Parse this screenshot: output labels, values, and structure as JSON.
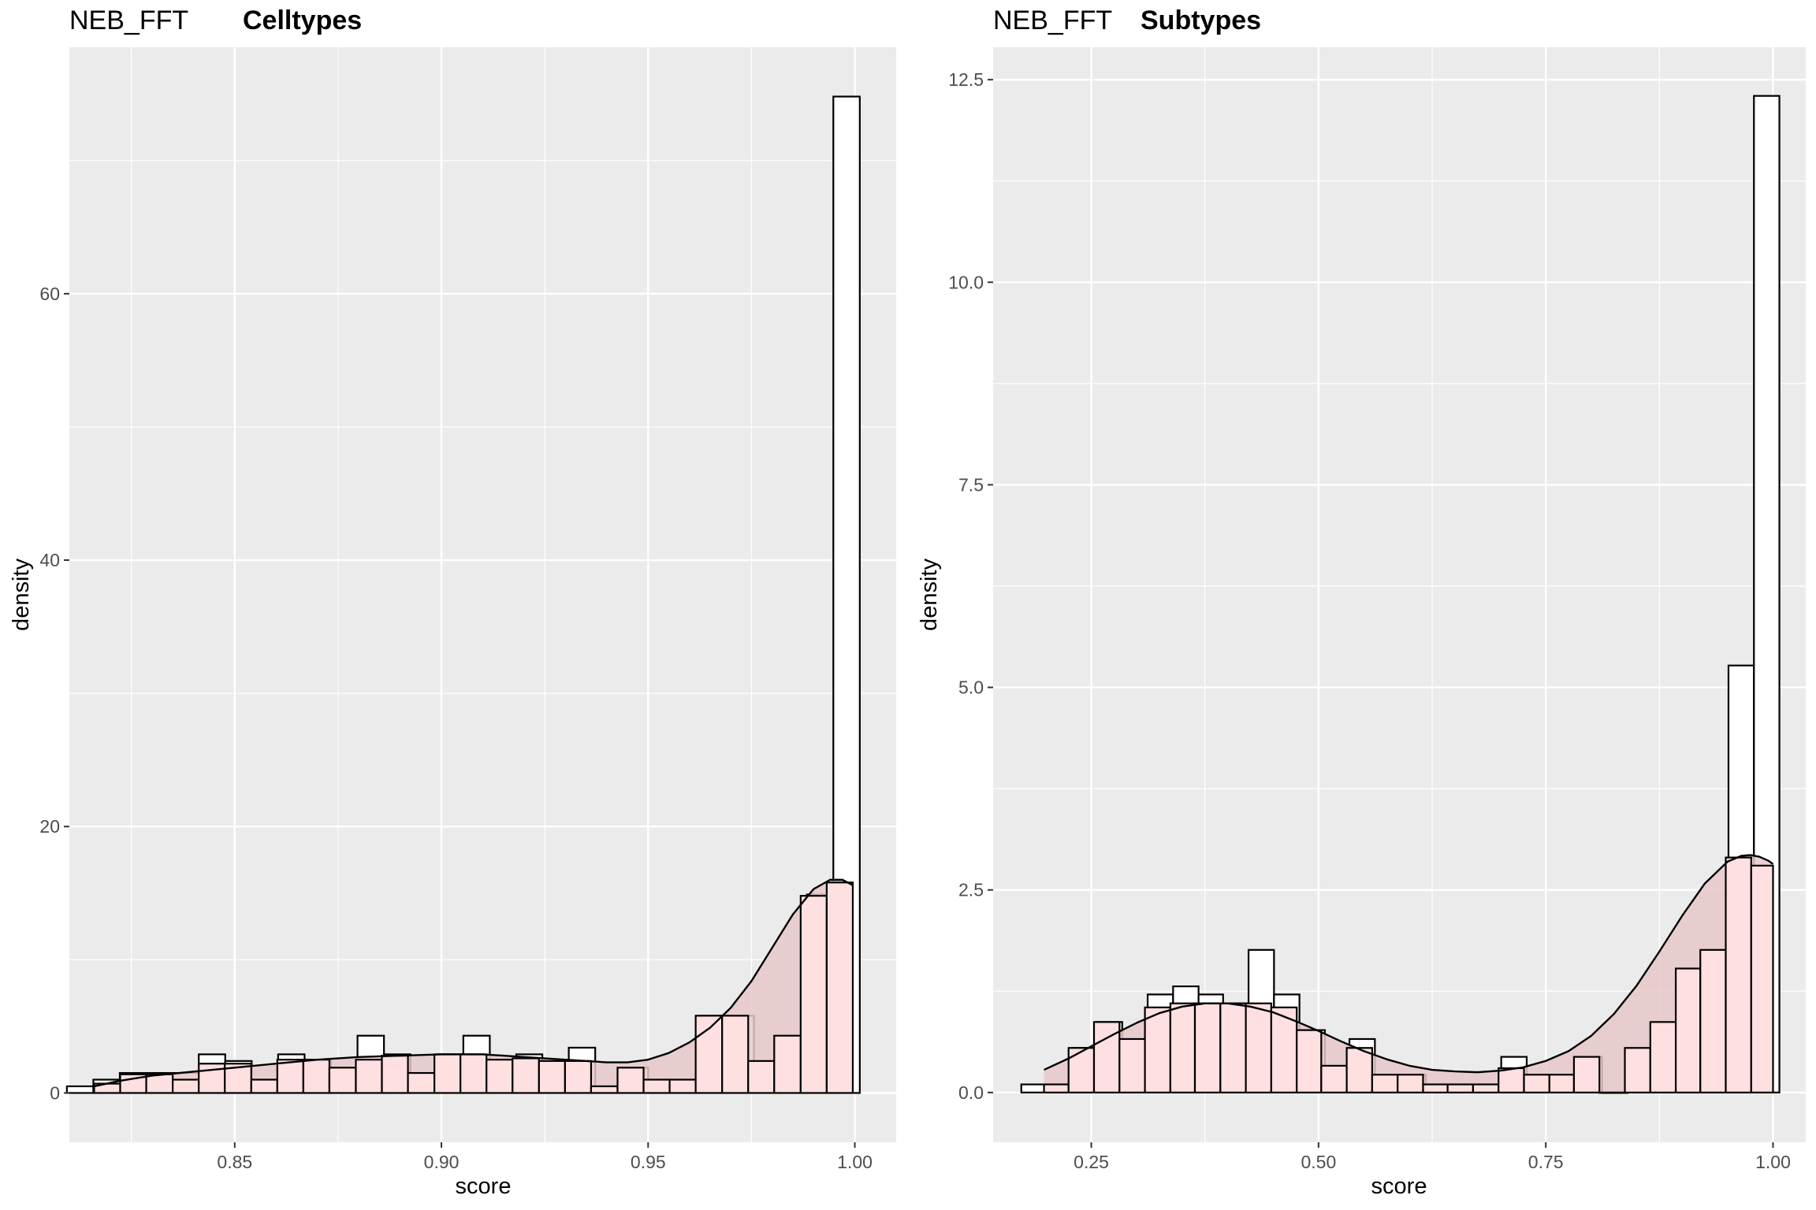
{
  "chart_data": [
    {
      "type": "histogram",
      "title_prefix": "NEB_FFT",
      "title": "Celltypes",
      "xlabel": "score",
      "ylabel": "density",
      "xlim": [
        0.81,
        1.01
      ],
      "ylim": [
        -3.7,
        78.5
      ],
      "x_ticks": [
        0.85,
        0.9,
        0.95,
        1.0
      ],
      "x_tick_labels": [
        "0.85",
        "0.90",
        "0.95",
        "1.00"
      ],
      "y_ticks": [
        0,
        20,
        40,
        60
      ],
      "y_tick_labels": [
        "0",
        "20",
        "40",
        "60"
      ],
      "grid": true,
      "colors": {
        "panel_bg": "#EBEBEB",
        "grid": "#FFFFFF",
        "bar_outline": "#000000",
        "bar_fill": "#FFFFFF",
        "overlay_fill": "#FFE0E0",
        "density_fill": "#E8C8CA",
        "density_line": "#000000"
      },
      "histogram": {
        "bins": [
          {
            "x0": 0.8094,
            "x1": 0.8158,
            "density": 0.5
          },
          {
            "x0": 0.8158,
            "x1": 0.8222,
            "density": 1.0
          },
          {
            "x0": 0.8222,
            "x1": 0.8286,
            "density": 1.5
          },
          {
            "x0": 0.8286,
            "x1": 0.835,
            "density": 1.5
          },
          {
            "x0": 0.835,
            "x1": 0.8413,
            "density": 1.5
          },
          {
            "x0": 0.8413,
            "x1": 0.8477,
            "density": 2.9
          },
          {
            "x0": 0.8477,
            "x1": 0.8541,
            "density": 2.4
          },
          {
            "x0": 0.8541,
            "x1": 0.8605,
            "density": 1.0
          },
          {
            "x0": 0.8605,
            "x1": 0.8669,
            "density": 2.9
          },
          {
            "x0": 0.8669,
            "x1": 0.8733,
            "density": 2.4
          },
          {
            "x0": 0.8733,
            "x1": 0.8797,
            "density": 1.9
          },
          {
            "x0": 0.8797,
            "x1": 0.8861,
            "density": 4.3
          },
          {
            "x0": 0.8861,
            "x1": 0.8925,
            "density": 2.9
          },
          {
            "x0": 0.8925,
            "x1": 0.8989,
            "density": 1.5
          },
          {
            "x0": 0.8989,
            "x1": 0.9053,
            "density": 2.9
          },
          {
            "x0": 0.9053,
            "x1": 0.9117,
            "density": 4.3
          },
          {
            "x0": 0.9117,
            "x1": 0.9181,
            "density": 2.4
          },
          {
            "x0": 0.9181,
            "x1": 0.9244,
            "density": 2.9
          },
          {
            "x0": 0.9244,
            "x1": 0.9308,
            "density": 2.4
          },
          {
            "x0": 0.9308,
            "x1": 0.9372,
            "density": 3.4
          },
          {
            "x0": 0.9372,
            "x1": 0.9436,
            "density": 0.5
          },
          {
            "x0": 0.9436,
            "x1": 0.95,
            "density": 1.9
          },
          {
            "x0": 0.95,
            "x1": 0.9564,
            "density": 1.0
          },
          {
            "x0": 0.9564,
            "x1": 0.9628,
            "density": 1.0
          },
          {
            "x0": 0.9628,
            "x1": 0.9692,
            "density": 5.8
          },
          {
            "x0": 0.9692,
            "x1": 0.9756,
            "density": 5.8
          },
          {
            "x0": 0.9756,
            "x1": 0.982,
            "density": 2.4
          },
          {
            "x0": 0.982,
            "x1": 0.9884,
            "density": 4.3
          },
          {
            "x0": 0.9884,
            "x1": 0.9948,
            "density": 14.9
          },
          {
            "x0": 0.9948,
            "x1": 1.0012,
            "density": 74.8
          }
        ]
      },
      "overlay_histogram": {
        "bins": [
          {
            "x0": 0.816,
            "x1": 0.8223,
            "density": 0.7
          },
          {
            "x0": 0.8223,
            "x1": 0.8286,
            "density": 1.4
          },
          {
            "x0": 0.8286,
            "x1": 0.835,
            "density": 1.4
          },
          {
            "x0": 0.835,
            "x1": 0.8413,
            "density": 1.0
          },
          {
            "x0": 0.8413,
            "x1": 0.8476,
            "density": 2.2
          },
          {
            "x0": 0.8476,
            "x1": 0.854,
            "density": 2.2
          },
          {
            "x0": 0.854,
            "x1": 0.8603,
            "density": 1.0
          },
          {
            "x0": 0.8603,
            "x1": 0.8666,
            "density": 2.5
          },
          {
            "x0": 0.8666,
            "x1": 0.8729,
            "density": 2.5
          },
          {
            "x0": 0.8729,
            "x1": 0.8793,
            "density": 1.9
          },
          {
            "x0": 0.8793,
            "x1": 0.8856,
            "density": 2.5
          },
          {
            "x0": 0.8856,
            "x1": 0.8919,
            "density": 2.8
          },
          {
            "x0": 0.8919,
            "x1": 0.8983,
            "density": 1.5
          },
          {
            "x0": 0.8983,
            "x1": 0.9046,
            "density": 2.9
          },
          {
            "x0": 0.9046,
            "x1": 0.9109,
            "density": 2.9
          },
          {
            "x0": 0.9109,
            "x1": 0.9172,
            "density": 2.5
          },
          {
            "x0": 0.9172,
            "x1": 0.9236,
            "density": 2.6
          },
          {
            "x0": 0.9236,
            "x1": 0.9299,
            "density": 2.4
          },
          {
            "x0": 0.9299,
            "x1": 0.9362,
            "density": 2.4
          },
          {
            "x0": 0.9362,
            "x1": 0.9426,
            "density": 0.5
          },
          {
            "x0": 0.9426,
            "x1": 0.9489,
            "density": 1.9
          },
          {
            "x0": 0.9489,
            "x1": 0.9552,
            "density": 1.0
          },
          {
            "x0": 0.9552,
            "x1": 0.9615,
            "density": 1.0
          },
          {
            "x0": 0.9615,
            "x1": 0.9679,
            "density": 5.8
          },
          {
            "x0": 0.9679,
            "x1": 0.9742,
            "density": 5.8
          },
          {
            "x0": 0.9742,
            "x1": 0.9805,
            "density": 2.4
          },
          {
            "x0": 0.9805,
            "x1": 0.9869,
            "density": 4.3
          },
          {
            "x0": 0.9869,
            "x1": 0.9932,
            "density": 14.8
          },
          {
            "x0": 0.9932,
            "x1": 0.9995,
            "density": 15.8
          }
        ]
      },
      "density": {
        "x": [
          0.816,
          0.822,
          0.83,
          0.84,
          0.85,
          0.86,
          0.87,
          0.88,
          0.89,
          0.9,
          0.91,
          0.92,
          0.93,
          0.94,
          0.945,
          0.95,
          0.955,
          0.96,
          0.965,
          0.97,
          0.975,
          0.98,
          0.985,
          0.99,
          0.994,
          0.997,
          0.9995
        ],
        "y": [
          0.5,
          0.9,
          1.3,
          1.6,
          1.9,
          2.2,
          2.5,
          2.7,
          2.8,
          2.9,
          2.9,
          2.7,
          2.5,
          2.3,
          2.3,
          2.5,
          3.0,
          3.8,
          4.9,
          6.4,
          8.4,
          10.9,
          13.4,
          15.3,
          16.0,
          16.0,
          15.6
        ]
      }
    },
    {
      "type": "histogram",
      "title_prefix": "NEB_FFT",
      "title": "Subtypes",
      "xlabel": "score",
      "ylabel": "density",
      "xlim": [
        0.142,
        1.036
      ],
      "ylim": [
        -0.614,
        12.9
      ],
      "x_ticks": [
        0.25,
        0.5,
        0.75,
        1.0
      ],
      "x_tick_labels": [
        "0.25",
        "0.50",
        "0.75",
        "1.00"
      ],
      "y_ticks": [
        0.0,
        2.5,
        5.0,
        7.5,
        10.0,
        12.5
      ],
      "y_tick_labels": [
        "0.0",
        "2.5",
        "5.0",
        "7.5",
        "10.0",
        "12.5"
      ],
      "grid": true,
      "colors": {
        "panel_bg": "#EBEBEB",
        "grid": "#FFFFFF",
        "bar_outline": "#000000",
        "bar_fill": "#FFFFFF",
        "overlay_fill": "#FFE0E0",
        "density_fill": "#E8C8CA",
        "density_line": "#000000"
      },
      "histogram": {
        "bins": [
          {
            "x0": 0.173,
            "x1": 0.201,
            "density": 0.1
          },
          {
            "x0": 0.201,
            "x1": 0.229,
            "density": 0.1
          },
          {
            "x0": 0.229,
            "x1": 0.256,
            "density": 0.55
          },
          {
            "x0": 0.256,
            "x1": 0.284,
            "density": 0.87
          },
          {
            "x0": 0.284,
            "x1": 0.312,
            "density": 0.66
          },
          {
            "x0": 0.312,
            "x1": 0.34,
            "density": 1.21
          },
          {
            "x0": 0.34,
            "x1": 0.368,
            "density": 1.31
          },
          {
            "x0": 0.368,
            "x1": 0.395,
            "density": 1.21
          },
          {
            "x0": 0.395,
            "x1": 0.423,
            "density": 1.1
          },
          {
            "x0": 0.423,
            "x1": 0.451,
            "density": 1.76
          },
          {
            "x0": 0.451,
            "x1": 0.479,
            "density": 1.21
          },
          {
            "x0": 0.479,
            "x1": 0.507,
            "density": 0.77
          },
          {
            "x0": 0.507,
            "x1": 0.534,
            "density": 0.33
          },
          {
            "x0": 0.534,
            "x1": 0.562,
            "density": 0.66
          },
          {
            "x0": 0.562,
            "x1": 0.59,
            "density": 0.22
          },
          {
            "x0": 0.59,
            "x1": 0.618,
            "density": 0.22
          },
          {
            "x0": 0.618,
            "x1": 0.646,
            "density": 0.1
          },
          {
            "x0": 0.646,
            "x1": 0.673,
            "density": 0.1
          },
          {
            "x0": 0.673,
            "x1": 0.701,
            "density": 0.1
          },
          {
            "x0": 0.701,
            "x1": 0.729,
            "density": 0.44
          },
          {
            "x0": 0.729,
            "x1": 0.757,
            "density": 0.22
          },
          {
            "x0": 0.757,
            "x1": 0.785,
            "density": 0.22
          },
          {
            "x0": 0.785,
            "x1": 0.812,
            "density": 0.44
          },
          {
            "x0": 0.812,
            "x1": 0.84,
            "density": 0.0
          },
          {
            "x0": 0.84,
            "x1": 0.868,
            "density": 0.55
          },
          {
            "x0": 0.868,
            "x1": 0.896,
            "density": 0.87
          },
          {
            "x0": 0.896,
            "x1": 0.924,
            "density": 1.53
          },
          {
            "x0": 0.924,
            "x1": 0.951,
            "density": 1.76
          },
          {
            "x0": 0.951,
            "x1": 0.979,
            "density": 5.27
          },
          {
            "x0": 0.979,
            "x1": 1.007,
            "density": 12.3
          }
        ]
      },
      "overlay_histogram": {
        "bins": [
          {
            "x0": 0.198,
            "x1": 0.225,
            "density": 0.1
          },
          {
            "x0": 0.225,
            "x1": 0.253,
            "density": 0.55
          },
          {
            "x0": 0.253,
            "x1": 0.281,
            "density": 0.87
          },
          {
            "x0": 0.281,
            "x1": 0.309,
            "density": 0.66
          },
          {
            "x0": 0.309,
            "x1": 0.337,
            "density": 1.05
          },
          {
            "x0": 0.337,
            "x1": 0.364,
            "density": 1.1
          },
          {
            "x0": 0.364,
            "x1": 0.392,
            "density": 1.1
          },
          {
            "x0": 0.392,
            "x1": 0.42,
            "density": 1.1
          },
          {
            "x0": 0.42,
            "x1": 0.448,
            "density": 1.1
          },
          {
            "x0": 0.448,
            "x1": 0.476,
            "density": 1.05
          },
          {
            "x0": 0.476,
            "x1": 0.503,
            "density": 0.77
          },
          {
            "x0": 0.503,
            "x1": 0.531,
            "density": 0.33
          },
          {
            "x0": 0.531,
            "x1": 0.559,
            "density": 0.55
          },
          {
            "x0": 0.559,
            "x1": 0.587,
            "density": 0.22
          },
          {
            "x0": 0.587,
            "x1": 0.615,
            "density": 0.22
          },
          {
            "x0": 0.615,
            "x1": 0.642,
            "density": 0.1
          },
          {
            "x0": 0.642,
            "x1": 0.67,
            "density": 0.1
          },
          {
            "x0": 0.67,
            "x1": 0.698,
            "density": 0.1
          },
          {
            "x0": 0.698,
            "x1": 0.726,
            "density": 0.3
          },
          {
            "x0": 0.726,
            "x1": 0.754,
            "density": 0.22
          },
          {
            "x0": 0.754,
            "x1": 0.781,
            "density": 0.22
          },
          {
            "x0": 0.781,
            "x1": 0.809,
            "density": 0.44
          },
          {
            "x0": 0.809,
            "x1": 0.837,
            "density": 0.0
          },
          {
            "x0": 0.837,
            "x1": 0.865,
            "density": 0.55
          },
          {
            "x0": 0.865,
            "x1": 0.893,
            "density": 0.87
          },
          {
            "x0": 0.893,
            "x1": 0.92,
            "density": 1.53
          },
          {
            "x0": 0.92,
            "x1": 0.948,
            "density": 1.76
          },
          {
            "x0": 0.948,
            "x1": 0.976,
            "density": 2.9
          },
          {
            "x0": 0.976,
            "x1": 1.0,
            "density": 2.8
          }
        ]
      },
      "density": {
        "x": [
          0.198,
          0.225,
          0.25,
          0.275,
          0.3,
          0.325,
          0.35,
          0.375,
          0.4,
          0.425,
          0.45,
          0.475,
          0.5,
          0.525,
          0.55,
          0.575,
          0.6,
          0.625,
          0.65,
          0.675,
          0.7,
          0.725,
          0.75,
          0.775,
          0.8,
          0.825,
          0.85,
          0.875,
          0.9,
          0.925,
          0.95,
          0.965,
          0.975,
          0.985,
          0.995,
          1.0
        ],
        "y": [
          0.28,
          0.42,
          0.57,
          0.72,
          0.86,
          0.98,
          1.06,
          1.1,
          1.1,
          1.06,
          0.99,
          0.88,
          0.76,
          0.63,
          0.51,
          0.41,
          0.33,
          0.28,
          0.26,
          0.25,
          0.27,
          0.31,
          0.39,
          0.51,
          0.7,
          0.97,
          1.32,
          1.74,
          2.18,
          2.58,
          2.85,
          2.92,
          2.93,
          2.91,
          2.86,
          2.82
        ]
      }
    }
  ]
}
